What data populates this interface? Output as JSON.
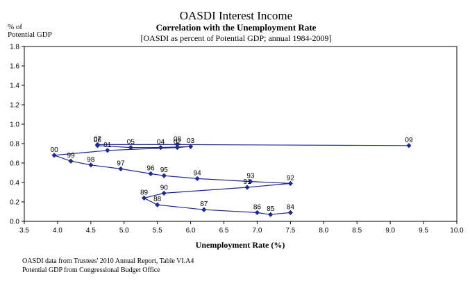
{
  "chart_data": {
    "type": "scatter",
    "title": "OASDI Interest Income",
    "subtitle": "Correlation with the Unemployment Rate",
    "note": "[OASDI as percent of Potential GDP;  annual 1984-2009]",
    "ylabel_line1": "% of",
    "ylabel_line2": "Potential GDP",
    "xlabel": "Unemployment Rate (%)",
    "xlim": [
      3.5,
      10.0
    ],
    "ylim": [
      0.0,
      1.8
    ],
    "x_ticks": [
      "3.5",
      "4.0",
      "4.5",
      "5.0",
      "5.5",
      "6.0",
      "6.5",
      "7.0",
      "7.5",
      "8.0",
      "8.5",
      "9.0",
      "9.5",
      "10.0"
    ],
    "y_ticks": [
      "0.0",
      "0.2",
      "0.4",
      "0.6",
      "0.8",
      "1.0",
      "1.2",
      "1.4",
      "1.6",
      "1.8"
    ],
    "grid": false,
    "connected": true,
    "marker": "diamond",
    "series_color": "#1f2a8a",
    "points": [
      {
        "label": "84",
        "x": 7.5,
        "y": 0.09
      },
      {
        "label": "85",
        "x": 7.2,
        "y": 0.07
      },
      {
        "label": "86",
        "x": 7.0,
        "y": 0.09
      },
      {
        "label": "87",
        "x": 6.2,
        "y": 0.12
      },
      {
        "label": "88",
        "x": 5.5,
        "y": 0.17
      },
      {
        "label": "89",
        "x": 5.3,
        "y": 0.24
      },
      {
        "label": "90",
        "x": 5.6,
        "y": 0.29
      },
      {
        "label": "91",
        "x": 6.85,
        "y": 0.35
      },
      {
        "label": "92",
        "x": 7.5,
        "y": 0.39
      },
      {
        "label": "93",
        "x": 6.9,
        "y": 0.41
      },
      {
        "label": "94",
        "x": 6.1,
        "y": 0.44
      },
      {
        "label": "95",
        "x": 5.6,
        "y": 0.47
      },
      {
        "label": "96",
        "x": 5.4,
        "y": 0.49
      },
      {
        "label": "97",
        "x": 4.95,
        "y": 0.54
      },
      {
        "label": "98",
        "x": 4.5,
        "y": 0.58
      },
      {
        "label": "99",
        "x": 4.2,
        "y": 0.62
      },
      {
        "label": "00",
        "x": 3.95,
        "y": 0.68
      },
      {
        "label": "01",
        "x": 4.75,
        "y": 0.73
      },
      {
        "label": "02",
        "x": 5.8,
        "y": 0.76
      },
      {
        "label": "03",
        "x": 6.0,
        "y": 0.77
      },
      {
        "label": "04",
        "x": 5.55,
        "y": 0.76
      },
      {
        "label": "05",
        "x": 5.1,
        "y": 0.76
      },
      {
        "label": "06",
        "x": 4.6,
        "y": 0.78
      },
      {
        "label": "07",
        "x": 4.6,
        "y": 0.79
      },
      {
        "label": "08",
        "x": 5.8,
        "y": 0.79
      },
      {
        "label": "09",
        "x": 9.28,
        "y": 0.78
      }
    ]
  },
  "footnotes": {
    "source_1": "OASDI data from Trustees' 2010 Annual Report, Table VI.A4",
    "source_2": "Potential GDP from Congressional Budget Office"
  }
}
